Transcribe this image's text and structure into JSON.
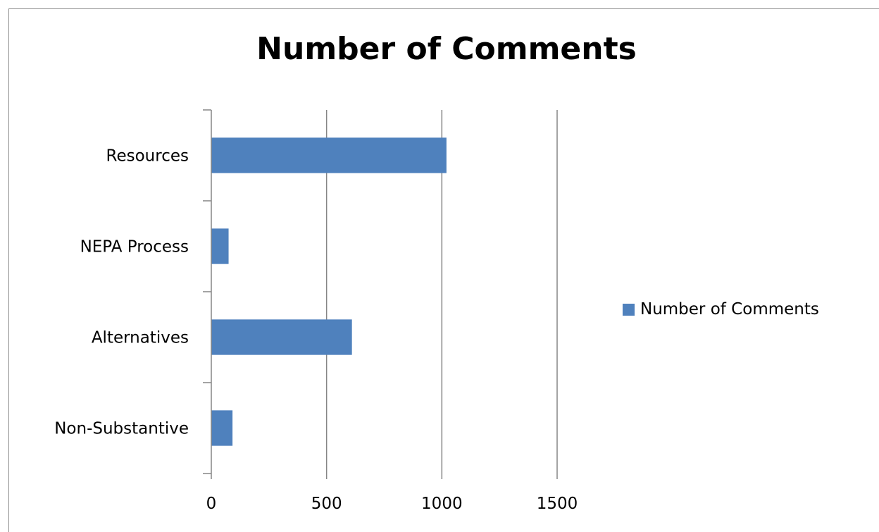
{
  "chart_data": {
    "type": "bar",
    "orientation": "horizontal",
    "title": "Number of Comments",
    "categories": [
      "Resources",
      "NEPA Process",
      "Alternatives",
      "Non-Substantive"
    ],
    "series": [
      {
        "name": "Number of Comments",
        "values": [
          1020,
          75,
          610,
          92
        ],
        "color": "#4f81bd"
      }
    ],
    "xlim": [
      0,
      1500
    ],
    "xticks": [
      "0",
      "500",
      "1000",
      "1500"
    ],
    "grid": true,
    "legend_position": "right"
  }
}
